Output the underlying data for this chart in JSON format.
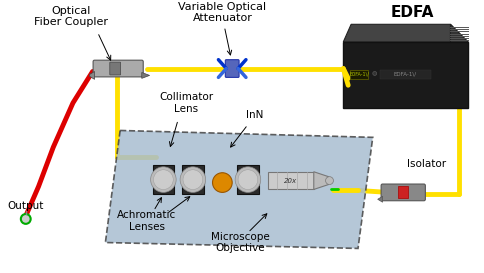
{
  "bg_color": "#ffffff",
  "fig_width": 4.84,
  "fig_height": 2.73,
  "dpi": 100,
  "labels": {
    "optical_fiber_coupler": "Optical\nFiber Coupler",
    "variable_optical_attenuator": "Variable Optical\nAttenuator",
    "edfa": "EDFA",
    "collimator_lens": "Collimator\nLens",
    "inn": "InN",
    "output": "Output",
    "achromatic_lenses": "Achromatic\nLenses",
    "microscope_objective": "Microscope\nObjective",
    "isolator": "Isolator"
  },
  "colors": {
    "yellow_fiber": "#FFE000",
    "red_fiber": "#DD0000",
    "green_fiber": "#00CC00",
    "platform_fill": "#A8BDD0",
    "platform_edge": "#444444",
    "lens_frame_dark": "#2a2a2a",
    "lens_glass": "#C8C8C8",
    "inn_orange": "#DD7700",
    "edfa_body": "#1a1a1a",
    "edfa_top": "#2d2d2d",
    "attenuator_blue": "#1111CC",
    "isolator_body": "#666666",
    "text_color": "#000000",
    "arrow_color": "#000000",
    "output_connector": "#00AA00",
    "coupler_body": "#999999",
    "coupler_tip": "#555555"
  }
}
